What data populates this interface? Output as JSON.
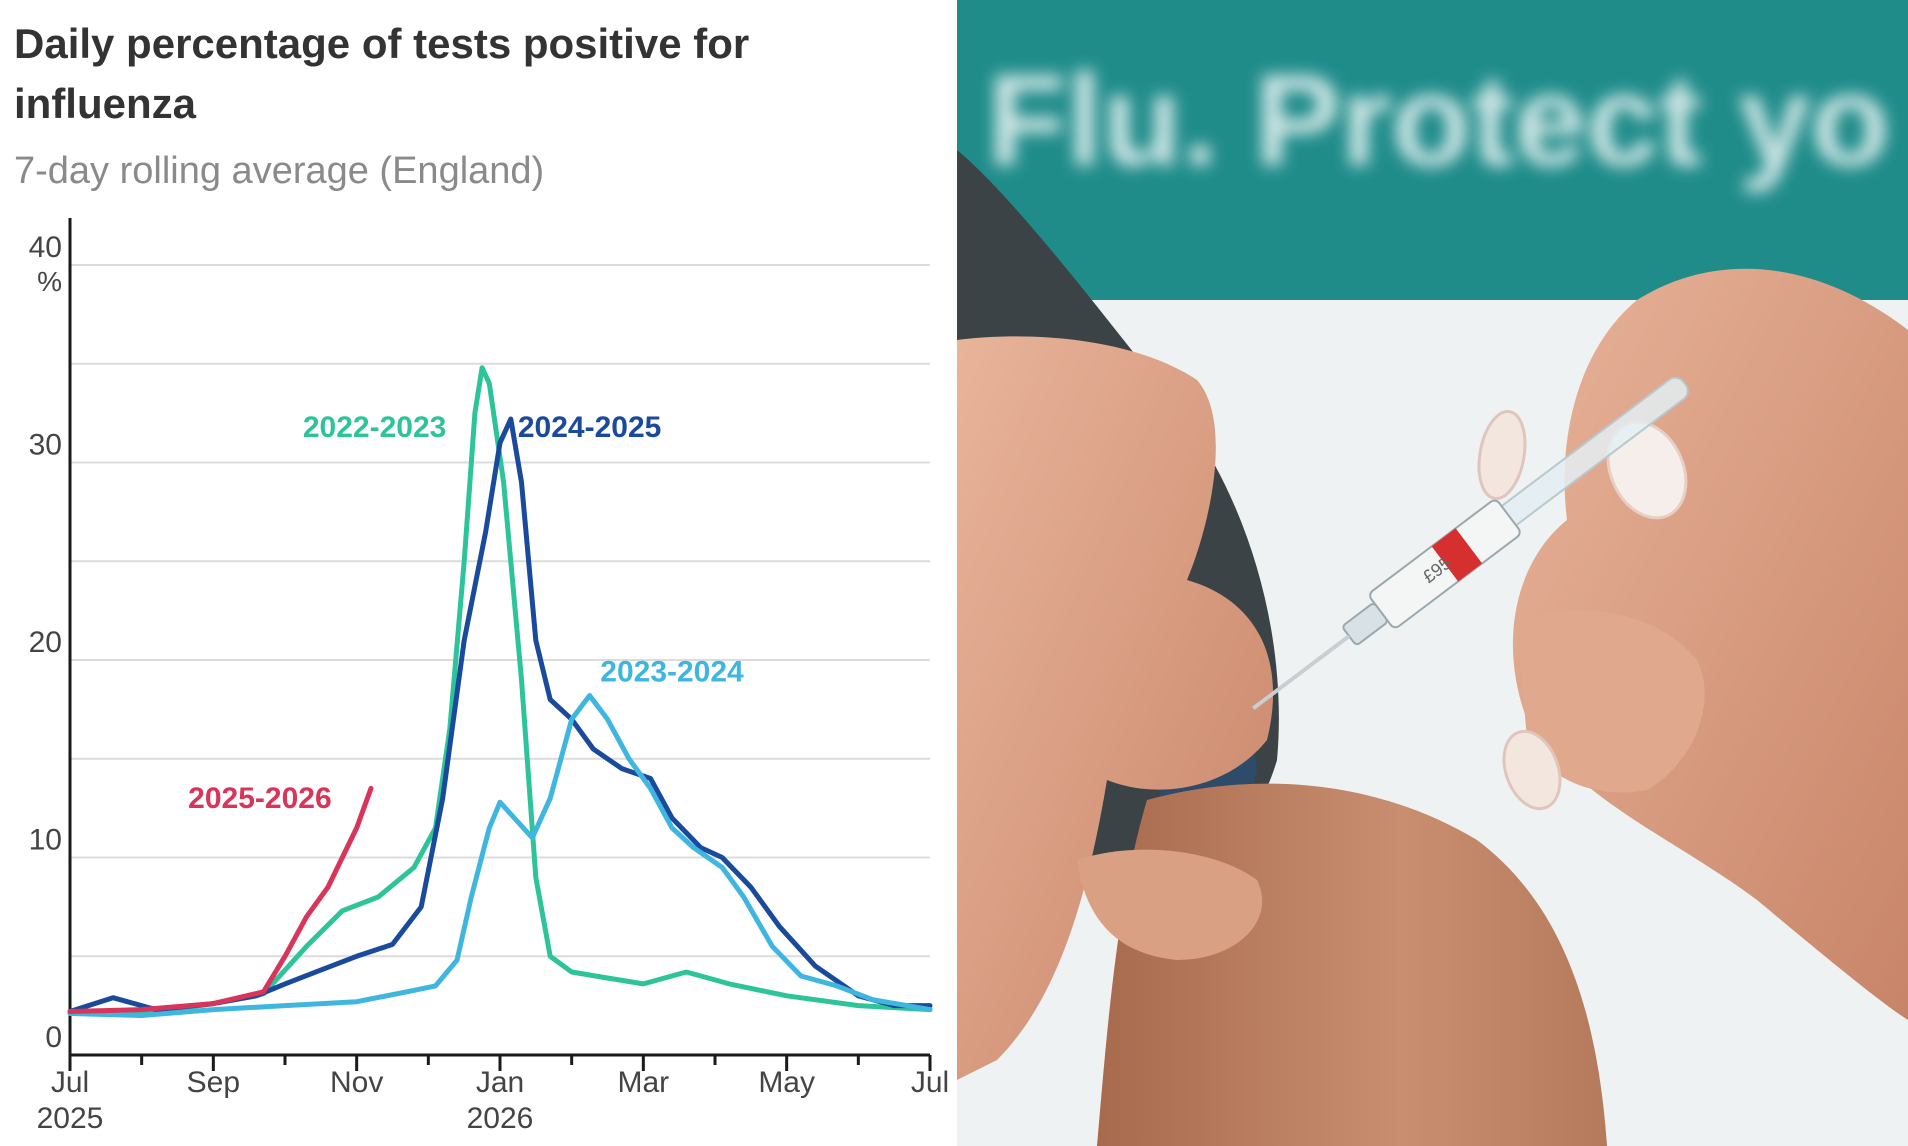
{
  "chart_data": {
    "type": "line",
    "title": "Daily percentage of tests positive for influenza",
    "subtitle": "7-day rolling average (England)",
    "ylabel": "%",
    "ylim": [
      0,
      40
    ],
    "y_ticks": [
      0,
      10,
      20,
      30,
      40
    ],
    "x_range": [
      0,
      12
    ],
    "x_ticks": [
      {
        "x": 0,
        "label": "Jul",
        "year": "2025"
      },
      {
        "x": 2,
        "label": "Sep",
        "year": ""
      },
      {
        "x": 4,
        "label": "Nov",
        "year": ""
      },
      {
        "x": 6,
        "label": "Jan",
        "year": "2026"
      },
      {
        "x": 8,
        "label": "Mar",
        "year": ""
      },
      {
        "x": 10,
        "label": "May",
        "year": ""
      },
      {
        "x": 12,
        "label": "Jul",
        "year": ""
      }
    ],
    "grid": true,
    "series": [
      {
        "name": "2022-2023",
        "color": "#2ec49a",
        "points": [
          [
            0,
            2.2
          ],
          [
            1,
            2.1
          ],
          [
            2,
            2.6
          ],
          [
            2.7,
            3.1
          ],
          [
            3.3,
            5.5
          ],
          [
            3.8,
            7.3
          ],
          [
            4.3,
            8.0
          ],
          [
            4.8,
            9.5
          ],
          [
            5.1,
            11.5
          ],
          [
            5.3,
            16.5
          ],
          [
            5.5,
            25.0
          ],
          [
            5.65,
            32.5
          ],
          [
            5.75,
            34.8
          ],
          [
            5.85,
            34.0
          ],
          [
            6.05,
            29.0
          ],
          [
            6.3,
            19.0
          ],
          [
            6.5,
            9.0
          ],
          [
            6.7,
            5.0
          ],
          [
            7.0,
            4.2
          ],
          [
            7.5,
            3.9
          ],
          [
            8.0,
            3.6
          ],
          [
            8.6,
            4.2
          ],
          [
            9.2,
            3.6
          ],
          [
            10.0,
            3.0
          ],
          [
            11.0,
            2.5
          ],
          [
            12.0,
            2.3
          ]
        ]
      },
      {
        "name": "2024-2025",
        "color": "#1a4a9c",
        "points": [
          [
            0,
            2.2
          ],
          [
            0.6,
            2.9
          ],
          [
            1.2,
            2.3
          ],
          [
            2,
            2.6
          ],
          [
            2.6,
            3.0
          ],
          [
            3.0,
            3.6
          ],
          [
            3.5,
            4.3
          ],
          [
            4.0,
            5.0
          ],
          [
            4.5,
            5.6
          ],
          [
            4.9,
            7.5
          ],
          [
            5.2,
            13.0
          ],
          [
            5.5,
            21.0
          ],
          [
            5.8,
            26.5
          ],
          [
            6.0,
            31.0
          ],
          [
            6.15,
            32.2
          ],
          [
            6.3,
            29.0
          ],
          [
            6.5,
            21.0
          ],
          [
            6.7,
            18.0
          ],
          [
            7.0,
            17.0
          ],
          [
            7.3,
            15.5
          ],
          [
            7.7,
            14.5
          ],
          [
            8.1,
            14.0
          ],
          [
            8.4,
            12.0
          ],
          [
            8.8,
            10.5
          ],
          [
            9.1,
            10.0
          ],
          [
            9.5,
            8.5
          ],
          [
            9.9,
            6.5
          ],
          [
            10.4,
            4.5
          ],
          [
            11.0,
            3.0
          ],
          [
            11.5,
            2.5
          ],
          [
            12.0,
            2.5
          ]
        ]
      },
      {
        "name": "2023-2024",
        "color": "#3fb6e0",
        "points": [
          [
            0,
            2.1
          ],
          [
            1,
            2.0
          ],
          [
            2,
            2.3
          ],
          [
            3,
            2.5
          ],
          [
            4,
            2.7
          ],
          [
            4.7,
            3.2
          ],
          [
            5.1,
            3.5
          ],
          [
            5.4,
            4.8
          ],
          [
            5.6,
            8.0
          ],
          [
            5.85,
            11.5
          ],
          [
            6.0,
            12.8
          ],
          [
            6.2,
            12.0
          ],
          [
            6.45,
            11.0
          ],
          [
            6.7,
            13.0
          ],
          [
            7.0,
            17.0
          ],
          [
            7.25,
            18.2
          ],
          [
            7.5,
            17.0
          ],
          [
            7.8,
            15.0
          ],
          [
            8.1,
            13.5
          ],
          [
            8.4,
            11.5
          ],
          [
            8.7,
            10.5
          ],
          [
            9.1,
            9.5
          ],
          [
            9.4,
            8.0
          ],
          [
            9.8,
            5.5
          ],
          [
            10.2,
            4.0
          ],
          [
            10.7,
            3.5
          ],
          [
            11.2,
            2.8
          ],
          [
            12.0,
            2.3
          ]
        ]
      },
      {
        "name": "2025-2026",
        "color": "#d9345a",
        "points": [
          [
            0,
            2.2
          ],
          [
            1,
            2.3
          ],
          [
            2,
            2.6
          ],
          [
            2.7,
            3.2
          ],
          [
            3.0,
            5.0
          ],
          [
            3.3,
            7.0
          ],
          [
            3.6,
            8.5
          ],
          [
            3.8,
            10.0
          ],
          [
            4.0,
            11.5
          ],
          [
            4.2,
            13.5
          ]
        ]
      }
    ],
    "annotations": [
      {
        "text": "2022-2023",
        "color": "#2ec49a",
        "x": 4.25,
        "y": 31.3,
        "anchor": "middle"
      },
      {
        "text": "2024-2025",
        "color": "#1a4a9c",
        "x": 7.25,
        "y": 31.3,
        "anchor": "middle"
      },
      {
        "text": "2023-2024",
        "color": "#3fb6e0",
        "x": 8.4,
        "y": 18.9,
        "anchor": "middle"
      },
      {
        "text": "2025-2026",
        "color": "#d9345a",
        "x": 2.65,
        "y": 12.5,
        "anchor": "middle"
      }
    ]
  },
  "photo": {
    "sign_text": "Flu. Protect yo",
    "syringe_label": "£95",
    "colors": {
      "banner": "#1f8c8a",
      "wall": "#eef2f3"
    }
  },
  "colors": {
    "title": "#333333",
    "subtitle": "#8a8a8a",
    "grid": "#dcdcdc",
    "axis": "#1a1a1a"
  }
}
